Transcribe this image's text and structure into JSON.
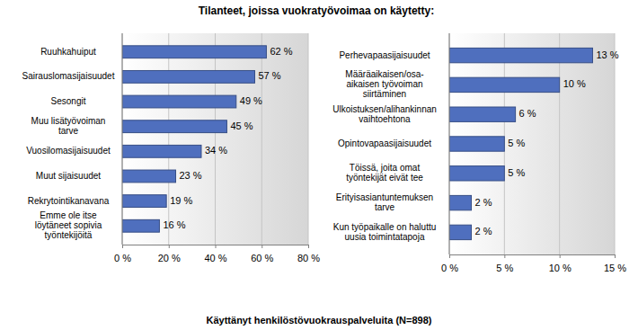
{
  "title": "Tilanteet, joissa vuokratyövoimaa on käytetty:",
  "caption": "Käyttänyt henkilöstövuokrauspalveluita (N=898)",
  "chart_data": [
    {
      "type": "bar",
      "orientation": "horizontal",
      "grid": true,
      "data_labels": true,
      "color": "#4f6fbe",
      "categories": [
        "Ruuhkahuiput",
        "Sairauslomasijaisuudet",
        "Sesongit",
        "Muu lisätyövoiman\ntarve",
        "Vuosilomasijaisuudet",
        "Muut sijaisuudet",
        "Rekrytointikanavana",
        "Emme ole itse\nlöytäneet sopivia\ntyöntekijöitä"
      ],
      "values": [
        62,
        57,
        49,
        45,
        34,
        23,
        19,
        16
      ],
      "value_labels": [
        "62 %",
        "57 %",
        "49 %",
        "45 %",
        "34 %",
        "23 %",
        "19 %",
        "16 %"
      ],
      "xlim": [
        0,
        80
      ],
      "xticks": [
        {
          "value": 0,
          "label": "0 %"
        },
        {
          "value": 20,
          "label": "20 %"
        },
        {
          "value": 40,
          "label": "40 %"
        },
        {
          "value": 60,
          "label": "60 %"
        },
        {
          "value": 80,
          "label": "80 %"
        }
      ]
    },
    {
      "type": "bar",
      "orientation": "horizontal",
      "grid": true,
      "data_labels": true,
      "color": "#4f6fbe",
      "categories": [
        "Perhevapaasijaisuudet",
        "Määräaikaisen/osa-\naikaisen työvoiman\nsiirtäminen",
        "Ulkoistuksen/alihankinnan\nvaihtoehtona",
        "Opintovapaasijaisuudet",
        "Töissä, joita omat\ntyöntekijät eivät tee",
        "Erityisasiantuntemuksen\ntarve",
        "Kun työpaikalle on haluttu\nuusia toimintatapoja"
      ],
      "values": [
        13,
        10,
        6,
        5,
        5,
        2,
        2
      ],
      "value_labels": [
        "13 %",
        "10 %",
        "6 %",
        "5 %",
        "5 %",
        "2 %",
        "2 %"
      ],
      "xlim": [
        0,
        15
      ],
      "xticks": [
        {
          "value": 0,
          "label": "0 %"
        },
        {
          "value": 5,
          "label": "5 %"
        },
        {
          "value": 10,
          "label": "10 %"
        },
        {
          "value": 15,
          "label": "15 %"
        }
      ]
    }
  ]
}
